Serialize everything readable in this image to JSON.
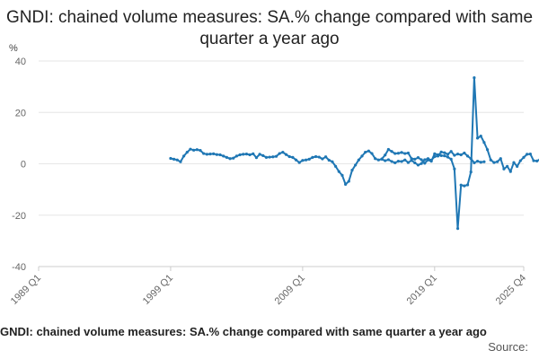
{
  "chart_data": {
    "type": "line",
    "title": "GNDI: chained volume measures: SA.% change compared with same quarter a year ago",
    "ylabel": "%",
    "xlabel": "",
    "ylim": [
      -40,
      40
    ],
    "y_ticks": [
      "40",
      "20",
      "0",
      "-20",
      "-40"
    ],
    "x_tick_labels": [
      "1989 Q1",
      "1999 Q1",
      "2009 Q1",
      "2019 Q1",
      "2025 Q4"
    ],
    "x_range": [
      "1989 Q1",
      "2025 Q4"
    ],
    "grid": true,
    "legend": "none",
    "series_color": "#1f77b4",
    "series": [
      {
        "name": "",
        "segments": [
          {
            "start": "1999 Q1",
            "values": [
              2.1,
              1.8,
              1.5,
              0.8,
              3.0,
              4.5,
              5.7,
              5.3,
              5.5,
              5.2,
              4.0,
              3.7,
              3.8,
              3.9,
              3.6,
              3.5,
              3.0,
              2.5,
              2.0,
              2.2,
              3.0,
              3.5,
              3.7,
              3.8,
              3.5,
              3.9,
              2.4,
              3.7,
              3.2,
              2.5,
              2.6,
              2.7,
              2.9,
              4.0,
              4.5,
              3.6,
              2.8,
              2.5,
              1.5,
              0.5,
              1.3,
              1.5,
              1.8,
              2.5,
              2.8,
              2.6,
              1.9,
              2.7,
              1.4,
              0.8,
              -1.0,
              -3.0,
              -4.5,
              -8.0,
              -6.8,
              -2.5,
              -0.5,
              1.5,
              3.0,
              4.5,
              5.0,
              4.0,
              2.0,
              1.5,
              1.8,
              1.2,
              1.6,
              0.9,
              0.4,
              1.0,
              0.9,
              1.5,
              0.5,
              1.3,
              0.4,
              -0.5,
              0.1,
              1.6,
              2.0,
              1.4,
              2.8,
              3.0,
              4.6,
              4.3,
              3.7,
              4.8,
              3.3,
              3.8,
              3.5,
              4.2,
              3.0,
              2.0,
              0.4,
              1.0,
              0.6,
              0.8
            ]
          },
          {
            "start": "2015 Q1",
            "values": [
              1.9,
              3.4,
              5.6,
              4.8,
              4.0,
              4.1,
              4.4,
              4.0,
              4.2,
              2.0,
              1.8,
              2.4,
              1.6,
              0.2,
              1.5,
              1.0,
              3.9,
              3.5,
              3.2,
              3.1,
              2.6,
              1.8,
              -2.0,
              -25.2,
              -8.3,
              -8.6,
              -8.2,
              -3.2,
              33.5,
              10.0,
              10.8,
              8.3,
              5.5,
              1.5,
              0.5,
              0.8,
              2.0,
              -2.0,
              -1.0,
              -3.0,
              0.5,
              -1.0,
              1.2,
              2.5,
              3.7,
              3.8,
              1.2,
              1.1,
              1.8,
              2.7,
              2.2,
              2.8,
              2.1,
              2.7
            ]
          }
        ]
      }
    ]
  },
  "footer": {
    "title": "GNDI: chained volume measures: SA.% change compared with same quarter a year ago",
    "source": "Source:"
  }
}
